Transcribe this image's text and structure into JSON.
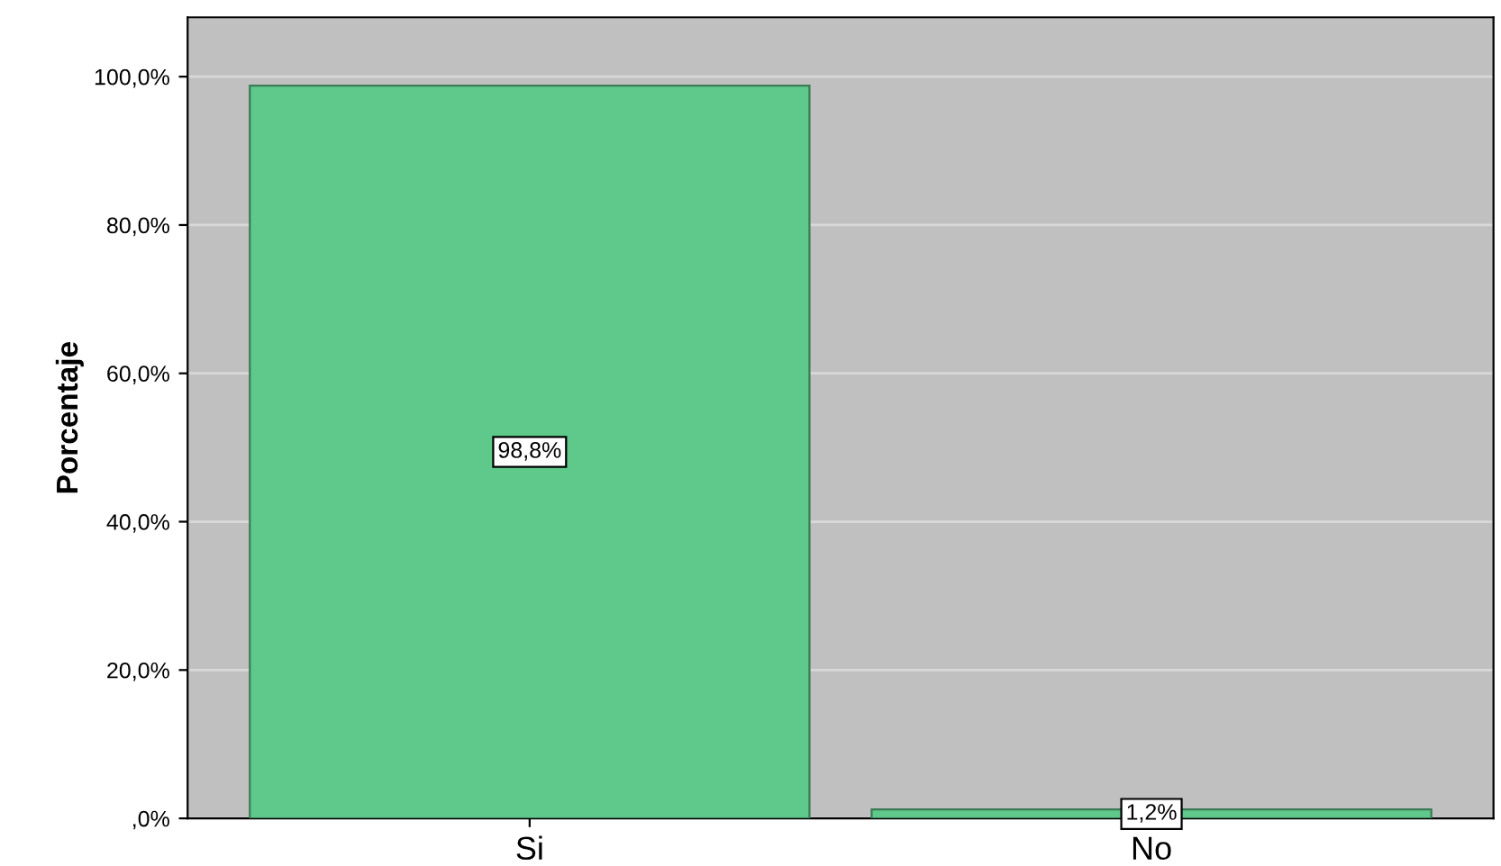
{
  "chart_data": {
    "type": "bar",
    "ylabel": "Porcentaje",
    "categories": [
      "Si",
      "No"
    ],
    "values": [
      98.8,
      1.2
    ],
    "value_labels": [
      "98,8%",
      "1,2%"
    ],
    "color": "#5ec98b",
    "ylim": [
      0,
      108
    ],
    "yticks": [
      {
        "value": 0,
        "label": ",0%"
      },
      {
        "value": 20,
        "label": "20,0%"
      },
      {
        "value": 40,
        "label": "40,0%"
      },
      {
        "value": 60,
        "label": "60,0%"
      },
      {
        "value": 80,
        "label": "80,0%"
      },
      {
        "value": 100,
        "label": "100,0%"
      }
    ],
    "grid": "y",
    "legend": false
  }
}
